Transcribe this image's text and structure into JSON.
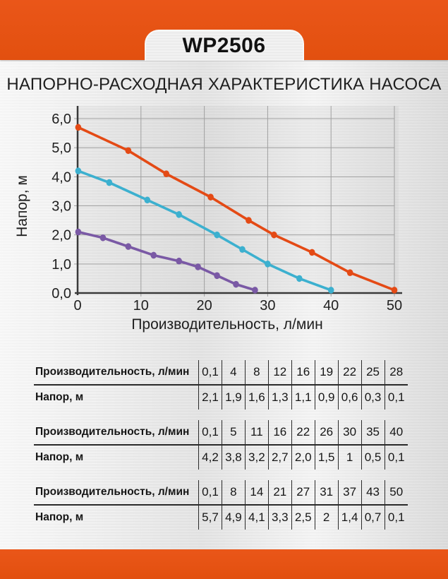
{
  "banner": {
    "model": "WP2506",
    "color": "#e5521a"
  },
  "title": "НАПОРНО-РАСХОДНАЯ ХАРАКТЕРИСТИКА НАСОСА",
  "chart_data": {
    "type": "line",
    "title": "",
    "xlabel": "Производительность, л/мин",
    "ylabel": "Напор, м",
    "xlim": [
      0,
      50
    ],
    "ylim": [
      0,
      6
    ],
    "grid": true,
    "legend_position": "none",
    "xticks": {
      "values": [
        0,
        10,
        20,
        30,
        40,
        50
      ],
      "labels": [
        "0",
        "10",
        "20",
        "30",
        "40",
        "50"
      ]
    },
    "yticks": {
      "values": [
        0,
        1,
        2,
        3,
        4,
        5,
        6
      ],
      "labels": [
        "0,0",
        "1,0",
        "2,0",
        "3,0",
        "4,0",
        "5,0",
        "6,0"
      ]
    },
    "series": [
      {
        "name": "head-curve-high",
        "color": "#e44a15",
        "x": [
          0.1,
          8,
          14,
          21,
          27,
          31,
          37,
          43,
          50
        ],
        "y": [
          5.7,
          4.9,
          4.1,
          3.3,
          2.5,
          2.0,
          1.4,
          0.7,
          0.1
        ]
      },
      {
        "name": "head-curve-mid",
        "color": "#3cb0cf",
        "x": [
          0.1,
          5,
          11,
          16,
          22,
          26,
          30,
          35,
          40
        ],
        "y": [
          4.2,
          3.8,
          3.2,
          2.7,
          2.0,
          1.5,
          1.0,
          0.5,
          0.1
        ]
      },
      {
        "name": "head-curve-low",
        "color": "#7a59a5",
        "x": [
          0.1,
          4,
          8,
          12,
          16,
          19,
          22,
          25,
          28
        ],
        "y": [
          2.1,
          1.9,
          1.6,
          1.3,
          1.1,
          0.9,
          0.6,
          0.3,
          0.1
        ]
      }
    ]
  },
  "tables": [
    {
      "rows": [
        {
          "label": "Производительность, л/мин",
          "values": [
            "0,1",
            "4",
            "8",
            "12",
            "16",
            "19",
            "22",
            "25",
            "28"
          ]
        },
        {
          "label": "Напор, м",
          "values": [
            "2,1",
            "1,9",
            "1,6",
            "1,3",
            "1,1",
            "0,9",
            "0,6",
            "0,3",
            "0,1"
          ]
        }
      ]
    },
    {
      "rows": [
        {
          "label": "Производительность, л/мин",
          "values": [
            "0,1",
            "5",
            "11",
            "16",
            "22",
            "26",
            "30",
            "35",
            "40"
          ]
        },
        {
          "label": "Напор, м",
          "values": [
            "4,2",
            "3,8",
            "3,2",
            "2,7",
            "2,0",
            "1,5",
            "1",
            "0,5",
            "0,1"
          ]
        }
      ]
    },
    {
      "rows": [
        {
          "label": "Производительность, л/мин",
          "values": [
            "0,1",
            "8",
            "14",
            "21",
            "27",
            "31",
            "37",
            "43",
            "50"
          ]
        },
        {
          "label": "Напор, м",
          "values": [
            "5,7",
            "4,9",
            "4,1",
            "3,3",
            "2,5",
            "2",
            "1,4",
            "0,7",
            "0,1"
          ]
        }
      ]
    }
  ]
}
